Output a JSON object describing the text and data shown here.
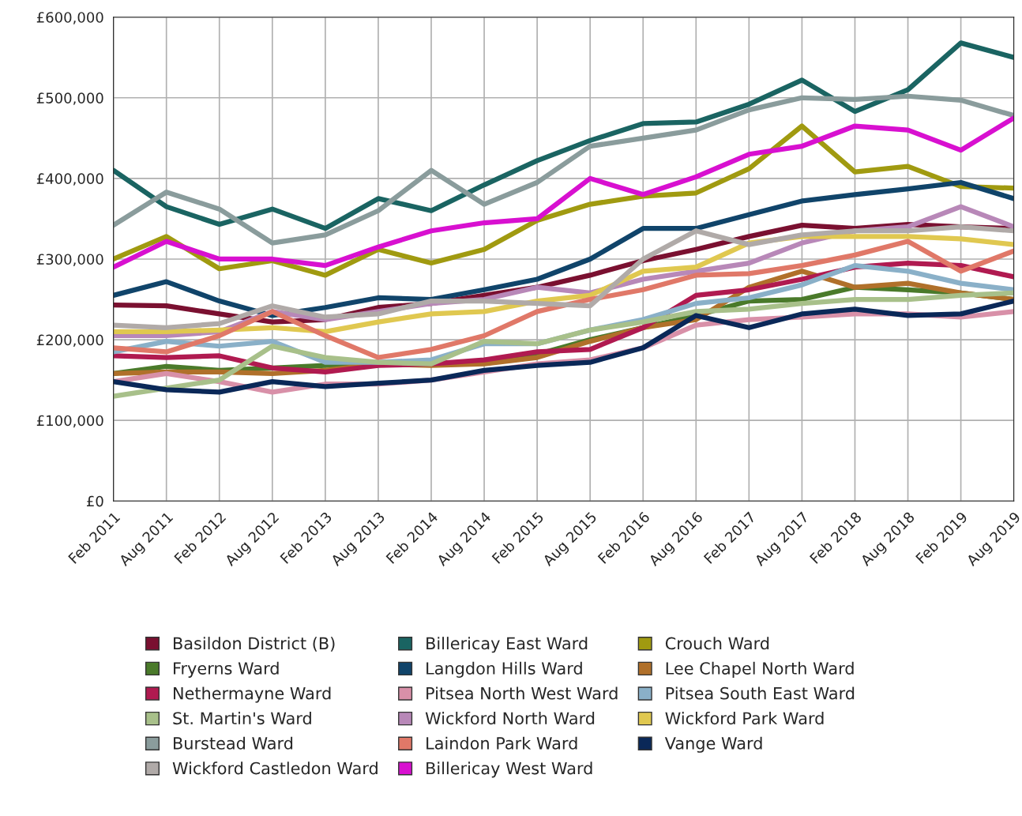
{
  "chart_data": {
    "type": "line",
    "categories": [
      "Feb 2011",
      "Aug 2011",
      "Feb 2012",
      "Aug 2012",
      "Feb 2013",
      "Aug 2013",
      "Feb 2014",
      "Aug 2014",
      "Feb 2015",
      "Aug 2015",
      "Feb 2016",
      "Aug 2016",
      "Feb 2017",
      "Aug 2017",
      "Feb 2018",
      "Aug 2018",
      "Feb 2019",
      "Aug 2019"
    ],
    "ylim": [
      0,
      600000
    ],
    "yticks": [
      {
        "value": 0,
        "label": "£0"
      },
      {
        "value": 100000,
        "label": "£100,000"
      },
      {
        "value": 200000,
        "label": "£200,000"
      },
      {
        "value": 300000,
        "label": "£300,000"
      },
      {
        "value": 400000,
        "label": "£400,000"
      },
      {
        "value": 500000,
        "label": "£500,000"
      },
      {
        "value": 600000,
        "label": "£600,000"
      }
    ],
    "grid": true,
    "legend": "bottom",
    "marker": "none",
    "line_style": "solid",
    "series": [
      {
        "name": "Basildon District (B)",
        "color": "#7a1030",
        "values": [
          243000,
          242000,
          232000,
          222000,
          225000,
          240000,
          245000,
          255000,
          265000,
          280000,
          298000,
          312000,
          328000,
          342000,
          338000,
          343000,
          340000,
          338000
        ]
      },
      {
        "name": "Billericay East Ward",
        "color": "#1a6462",
        "values": [
          410000,
          365000,
          343000,
          362000,
          338000,
          375000,
          360000,
          392000,
          422000,
          447000,
          468000,
          470000,
          492000,
          522000,
          483000,
          510000,
          568000,
          550000
        ]
      },
      {
        "name": "Crouch Ward",
        "color": "#a09a10",
        "values": [
          300000,
          328000,
          288000,
          298000,
          280000,
          312000,
          295000,
          312000,
          348000,
          368000,
          378000,
          382000,
          412000,
          465000,
          408000,
          415000,
          390000,
          388000
        ]
      },
      {
        "name": "Fryerns Ward",
        "color": "#4a7a2a",
        "values": [
          158000,
          167000,
          162000,
          165000,
          168000,
          170000,
          170000,
          172000,
          182000,
          200000,
          215000,
          230000,
          248000,
          250000,
          265000,
          262000,
          258000,
          250000
        ]
      },
      {
        "name": "Langdon Hills Ward",
        "color": "#10446a",
        "values": [
          255000,
          272000,
          248000,
          230000,
          240000,
          252000,
          250000,
          262000,
          275000,
          300000,
          338000,
          338000,
          355000,
          372000,
          380000,
          387000,
          395000,
          375000
        ]
      },
      {
        "name": "Lee Chapel North Ward",
        "color": "#b0702a",
        "values": [
          158000,
          160000,
          160000,
          158000,
          162000,
          170000,
          168000,
          170000,
          178000,
          198000,
          215000,
          225000,
          265000,
          285000,
          265000,
          270000,
          258000,
          250000
        ]
      },
      {
        "name": "Nethermayne Ward",
        "color": "#b01a50",
        "values": [
          180000,
          178000,
          180000,
          165000,
          160000,
          168000,
          170000,
          175000,
          185000,
          188000,
          215000,
          255000,
          262000,
          275000,
          290000,
          295000,
          292000,
          278000
        ]
      },
      {
        "name": "Pitsea North West Ward",
        "color": "#d890a8",
        "values": [
          148000,
          158000,
          148000,
          135000,
          145000,
          145000,
          150000,
          160000,
          170000,
          175000,
          190000,
          218000,
          225000,
          228000,
          232000,
          232000,
          228000,
          235000
        ]
      },
      {
        "name": "Pitsea South East Ward",
        "color": "#8ab0c8",
        "values": [
          185000,
          198000,
          192000,
          198000,
          172000,
          172000,
          175000,
          195000,
          195000,
          212000,
          225000,
          245000,
          252000,
          268000,
          292000,
          285000,
          270000,
          262000
        ]
      },
      {
        "name": "St. Martin's Ward",
        "color": "#a8c08a",
        "values": [
          130000,
          140000,
          150000,
          192000,
          178000,
          172000,
          170000,
          198000,
          195000,
          212000,
          222000,
          235000,
          238000,
          245000,
          250000,
          250000,
          255000,
          258000
        ]
      },
      {
        "name": "Wickford North Ward",
        "color": "#b888b8",
        "values": [
          205000,
          205000,
          210000,
          235000,
          225000,
          235000,
          245000,
          250000,
          265000,
          258000,
          275000,
          285000,
          295000,
          320000,
          335000,
          340000,
          365000,
          340000
        ]
      },
      {
        "name": "Wickford Park Ward",
        "color": "#e0c850",
        "values": [
          210000,
          210000,
          212000,
          215000,
          210000,
          222000,
          232000,
          235000,
          248000,
          255000,
          285000,
          290000,
          320000,
          328000,
          328000,
          328000,
          325000,
          318000
        ]
      },
      {
        "name": "Burstead Ward",
        "color": "#8a9c9c",
        "values": [
          342000,
          383000,
          362000,
          320000,
          330000,
          360000,
          410000,
          368000,
          395000,
          440000,
          450000,
          460000,
          485000,
          500000,
          498000,
          502000,
          497000,
          478000
        ]
      },
      {
        "name": "Laindon Park Ward",
        "color": "#e07868",
        "values": [
          190000,
          185000,
          205000,
          235000,
          205000,
          178000,
          188000,
          205000,
          235000,
          250000,
          262000,
          280000,
          282000,
          292000,
          305000,
          322000,
          285000,
          310000
        ]
      },
      {
        "name": "Vange Ward",
        "color": "#0a2858",
        "values": [
          148000,
          138000,
          135000,
          148000,
          142000,
          146000,
          150000,
          162000,
          168000,
          172000,
          190000,
          230000,
          215000,
          232000,
          238000,
          230000,
          232000,
          248000
        ]
      },
      {
        "name": "Wickford Castledon Ward",
        "color": "#b0aaa8",
        "values": [
          218000,
          215000,
          220000,
          242000,
          228000,
          232000,
          248000,
          248000,
          245000,
          242000,
          300000,
          335000,
          318000,
          330000,
          335000,
          335000,
          340000,
          335000
        ]
      },
      {
        "name": "Billericay West Ward",
        "color": "#d810d0",
        "values": [
          290000,
          322000,
          300000,
          300000,
          292000,
          315000,
          335000,
          345000,
          350000,
          400000,
          380000,
          402000,
          430000,
          440000,
          465000,
          460000,
          435000,
          475000
        ]
      }
    ]
  }
}
